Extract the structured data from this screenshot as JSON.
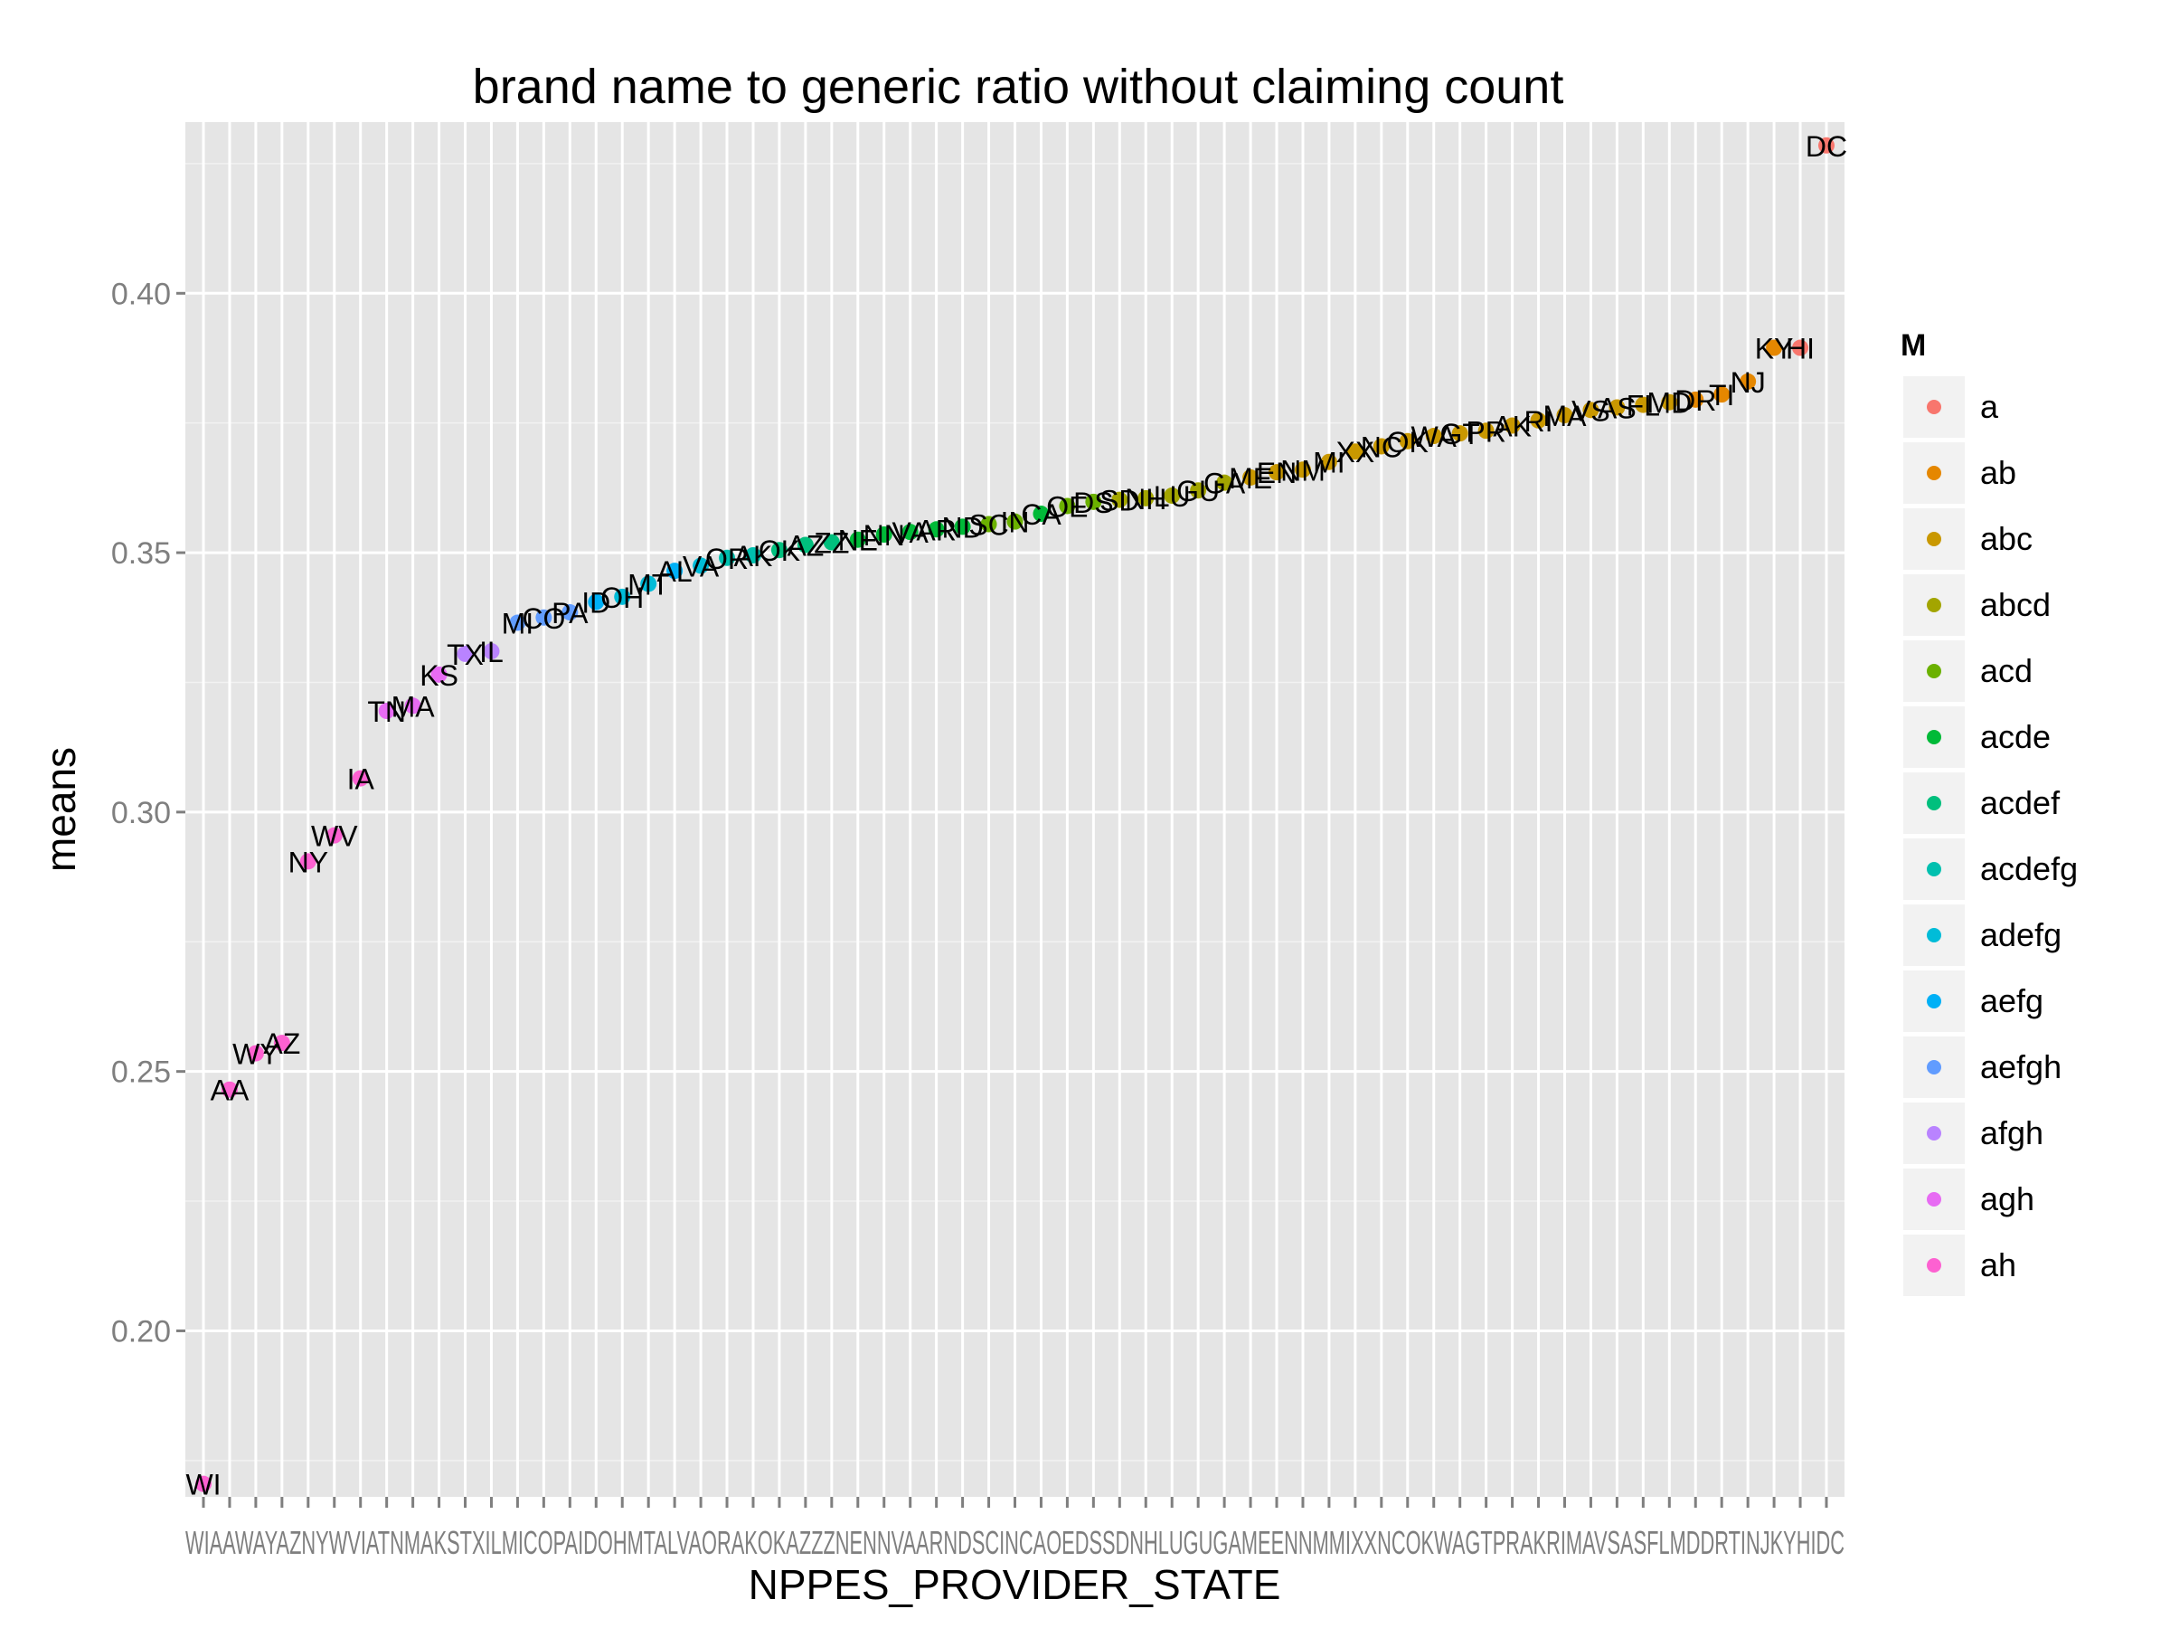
{
  "chart_data": {
    "type": "scatter",
    "title": "brand name to generic ratio without claiming count",
    "xlabel": "NPPES_PROVIDER_STATE",
    "ylabel": "means",
    "ylim": [
      0.168,
      0.433
    ],
    "yticks": [
      0.2,
      0.25,
      0.3,
      0.35,
      0.4
    ],
    "ytick_labels": [
      "0.20",
      "0.25",
      "0.30",
      "0.35",
      "0.40"
    ],
    "grid": true,
    "legend": {
      "title": "M",
      "placement": "right",
      "entries": [
        {
          "label": "a",
          "color": "#F8766D"
        },
        {
          "label": "ab",
          "color": "#E58700"
        },
        {
          "label": "abc",
          "color": "#C99800"
        },
        {
          "label": "abcd",
          "color": "#A3A500"
        },
        {
          "label": "acd",
          "color": "#6BB100"
        },
        {
          "label": "acde",
          "color": "#00BA38"
        },
        {
          "label": "acdef",
          "color": "#00BF7D"
        },
        {
          "label": "acdefg",
          "color": "#00C0AF"
        },
        {
          "label": "adefg",
          "color": "#00BCD8"
        },
        {
          "label": "aefg",
          "color": "#00B0F6"
        },
        {
          "label": "aefgh",
          "color": "#619CFF"
        },
        {
          "label": "afgh",
          "color": "#B983FF"
        },
        {
          "label": "agh",
          "color": "#E76BF3"
        },
        {
          "label": "ah",
          "color": "#FD61D1"
        }
      ]
    },
    "points": [
      {
        "state": "WI",
        "y": 0.1705,
        "group": "ah"
      },
      {
        "state": "AA",
        "y": 0.2465,
        "group": "ah"
      },
      {
        "state": "WY",
        "y": 0.2535,
        "group": "ah"
      },
      {
        "state": "AZ",
        "y": 0.2555,
        "group": "ah"
      },
      {
        "state": "NY",
        "y": 0.2905,
        "group": "ah"
      },
      {
        "state": "WV",
        "y": 0.2955,
        "group": "ah"
      },
      {
        "state": "IA",
        "y": 0.3065,
        "group": "ah"
      },
      {
        "state": "TN",
        "y": 0.3195,
        "group": "agh"
      },
      {
        "state": "MA",
        "y": 0.3205,
        "group": "agh"
      },
      {
        "state": "KS",
        "y": 0.3265,
        "group": "agh"
      },
      {
        "state": "TX",
        "y": 0.3305,
        "group": "afgh"
      },
      {
        "state": "IL",
        "y": 0.331,
        "group": "afgh"
      },
      {
        "state": "MI",
        "y": 0.3365,
        "group": "aefgh"
      },
      {
        "state": "CO",
        "y": 0.3375,
        "group": "aefgh"
      },
      {
        "state": "PA",
        "y": 0.3385,
        "group": "aefgh"
      },
      {
        "state": "ID",
        "y": 0.3405,
        "group": "aefg"
      },
      {
        "state": "OH",
        "y": 0.3415,
        "group": "adefg"
      },
      {
        "state": "MT",
        "y": 0.344,
        "group": "adefg"
      },
      {
        "state": "AL",
        "y": 0.3465,
        "group": "aefg"
      },
      {
        "state": "VA",
        "y": 0.3475,
        "group": "adefg"
      },
      {
        "state": "OR",
        "y": 0.349,
        "group": "acdefg"
      },
      {
        "state": "AK",
        "y": 0.3495,
        "group": "acdefg"
      },
      {
        "state": "OK",
        "y": 0.3505,
        "group": "acdef"
      },
      {
        "state": "AZ",
        "y": 0.3515,
        "group": "acdef"
      },
      {
        "state": "ZZ",
        "y": 0.352,
        "group": "acdef"
      },
      {
        "state": "NE",
        "y": 0.3525,
        "group": "acde"
      },
      {
        "state": "NN",
        "y": 0.3535,
        "group": "acde"
      },
      {
        "state": "VA",
        "y": 0.354,
        "group": "acde"
      },
      {
        "state": "AR",
        "y": 0.3545,
        "group": "acde"
      },
      {
        "state": "ND",
        "y": 0.355,
        "group": "acde"
      },
      {
        "state": "SC",
        "y": 0.3555,
        "group": "acd"
      },
      {
        "state": "IN",
        "y": 0.356,
        "group": "acd"
      },
      {
        "state": "CA",
        "y": 0.3575,
        "group": "acde"
      },
      {
        "state": "OE",
        "y": 0.359,
        "group": "acd"
      },
      {
        "state": "DS",
        "y": 0.3598,
        "group": "acd"
      },
      {
        "state": "SD",
        "y": 0.3602,
        "group": "abcd"
      },
      {
        "state": "NH",
        "y": 0.3605,
        "group": "abcd"
      },
      {
        "state": "LU",
        "y": 0.361,
        "group": "abcd"
      },
      {
        "state": "GU",
        "y": 0.362,
        "group": "abcd"
      },
      {
        "state": "GA",
        "y": 0.3635,
        "group": "abcd"
      },
      {
        "state": "ME",
        "y": 0.3645,
        "group": "abc"
      },
      {
        "state": "EN",
        "y": 0.3655,
        "group": "abc"
      },
      {
        "state": "NM",
        "y": 0.366,
        "group": "abc"
      },
      {
        "state": "MI",
        "y": 0.3675,
        "group": "abc"
      },
      {
        "state": "XX",
        "y": 0.3695,
        "group": "abc"
      },
      {
        "state": "NC",
        "y": 0.3705,
        "group": "abc"
      },
      {
        "state": "OK",
        "y": 0.3715,
        "group": "abc"
      },
      {
        "state": "WA",
        "y": 0.3725,
        "group": "abc"
      },
      {
        "state": "GT",
        "y": 0.373,
        "group": "abc"
      },
      {
        "state": "PR",
        "y": 0.3735,
        "group": "abc"
      },
      {
        "state": "AK",
        "y": 0.3745,
        "group": "abc"
      },
      {
        "state": "RI",
        "y": 0.3755,
        "group": "abc"
      },
      {
        "state": "MA",
        "y": 0.3765,
        "group": "abc"
      },
      {
        "state": "VS",
        "y": 0.3775,
        "group": "abc"
      },
      {
        "state": "AS",
        "y": 0.378,
        "group": "abc"
      },
      {
        "state": "FL",
        "y": 0.3785,
        "group": "abc"
      },
      {
        "state": "MD",
        "y": 0.379,
        "group": "abc"
      },
      {
        "state": "DR",
        "y": 0.3795,
        "group": "ab"
      },
      {
        "state": "TI",
        "y": 0.3805,
        "group": "ab"
      },
      {
        "state": "NJ",
        "y": 0.383,
        "group": "ab"
      },
      {
        "state": "KY",
        "y": 0.3895,
        "group": "ab"
      },
      {
        "state": "HI",
        "y": 0.3895,
        "group": "a"
      },
      {
        "state": "DC",
        "y": 0.4285,
        "group": "a"
      }
    ],
    "x_tick_labels_note": "overlapping state abbreviations along x axis",
    "x_tick_text": "WIAAWAYAZNYWVIATNMAKSTXILMICOPAIDOHMTALVAORAKOKAZZZNENNVAARNDSCINCAOEDSSDNHLUGUGAMEENNMMIXXNCOKWAGTPRAKRIMAVSASFLMDDRTINJKYHIDC"
  }
}
